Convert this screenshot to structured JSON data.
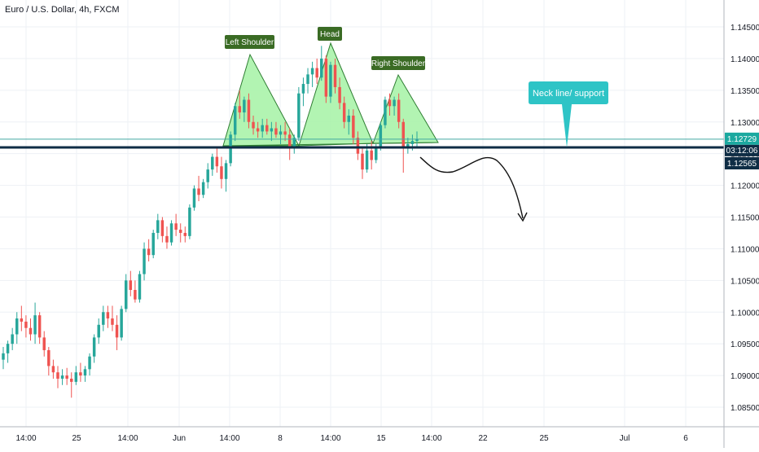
{
  "header": {
    "symbol_title": "Euro / U.S. Dollar, 4h, FXCM"
  },
  "colors": {
    "up": "#26a69a",
    "down": "#ef5350",
    "grid": "#eef1f5",
    "triangle_fill": "#a5f2a5",
    "triangle_stroke": "#2e7d32",
    "label_bg": "#3a6b24",
    "neckline": "#0f2d45",
    "callout": "#2ec4c6",
    "price_badge": "#1ca9a0",
    "neck_badge": "#0f2d45",
    "ask_line": "#43a9a3"
  },
  "chart_data": {
    "type": "candlestick",
    "title": "Euro / U.S. Dollar, 4h, FXCM",
    "ylim": [
      1.0825,
      1.1495
    ],
    "y_ticks": [
      "1.14500",
      "1.14000",
      "1.13500",
      "1.13000",
      "1.12500",
      "1.12000",
      "1.11500",
      "1.11000",
      "1.10500",
      "1.10000",
      "1.09500",
      "1.09000",
      "1.08500"
    ],
    "x_ticks": [
      "14:00",
      "25",
      "14:00",
      "Jun",
      "14:00",
      "8",
      "14:00",
      "15",
      "14:00",
      "22",
      "25",
      "Jul",
      "6"
    ],
    "grid": true,
    "current_price": "1.12729",
    "countdown": "03:12:06",
    "neckline_price": "1.12565",
    "candles": [
      [
        1.0925,
        1.0945,
        1.091,
        1.0935
      ],
      [
        1.0935,
        1.0955,
        1.092,
        1.095
      ],
      [
        1.095,
        1.0975,
        1.094,
        1.0965
      ],
      [
        1.0965,
        1.1,
        1.095,
        1.099
      ],
      [
        1.099,
        1.101,
        1.097,
        1.0985
      ],
      [
        1.0985,
        1.0995,
        1.096,
        1.0975
      ],
      [
        1.0975,
        1.099,
        1.0955,
        1.0965
      ],
      [
        1.0965,
        1.1015,
        1.095,
        1.0995
      ],
      [
        1.0995,
        1.1,
        1.095,
        1.096
      ],
      [
        1.096,
        1.097,
        1.093,
        1.094
      ],
      [
        1.094,
        1.0945,
        1.09,
        1.0915
      ],
      [
        1.0915,
        1.0925,
        1.0895,
        1.0905
      ],
      [
        1.0905,
        1.0915,
        1.088,
        1.0895
      ],
      [
        1.0895,
        1.091,
        1.0885,
        1.09
      ],
      [
        1.09,
        1.0912,
        1.0885,
        1.0895
      ],
      [
        1.0895,
        1.0905,
        1.0865,
        1.089
      ],
      [
        1.089,
        1.0915,
        1.0885,
        1.0905
      ],
      [
        1.0905,
        1.092,
        1.089,
        1.09
      ],
      [
        1.09,
        1.0915,
        1.089,
        1.091
      ],
      [
        1.091,
        1.0935,
        1.09,
        1.093
      ],
      [
        1.093,
        1.0965,
        1.092,
        1.096
      ],
      [
        1.096,
        1.099,
        1.095,
        1.098
      ],
      [
        1.098,
        1.101,
        1.097,
        1.1
      ],
      [
        1.1,
        1.101,
        1.0975,
        1.099
      ],
      [
        1.099,
        1.101,
        1.097,
        1.098
      ],
      [
        1.098,
        1.0995,
        1.094,
        1.096
      ],
      [
        1.096,
        1.101,
        1.0955,
        1.1005
      ],
      [
        1.1005,
        1.106,
        1.1,
        1.105
      ],
      [
        1.105,
        1.1065,
        1.1025,
        1.1035
      ],
      [
        1.1035,
        1.105,
        1.1015,
        1.102
      ],
      [
        1.102,
        1.1065,
        1.1015,
        1.106
      ],
      [
        1.106,
        1.111,
        1.105,
        1.11
      ],
      [
        1.11,
        1.1115,
        1.108,
        1.109
      ],
      [
        1.109,
        1.113,
        1.1085,
        1.1125
      ],
      [
        1.1125,
        1.1155,
        1.1115,
        1.1145
      ],
      [
        1.1145,
        1.115,
        1.111,
        1.112
      ],
      [
        1.112,
        1.1135,
        1.11,
        1.111
      ],
      [
        1.111,
        1.1145,
        1.1105,
        1.114
      ],
      [
        1.114,
        1.1155,
        1.112,
        1.113
      ],
      [
        1.113,
        1.114,
        1.111,
        1.1125
      ],
      [
        1.1125,
        1.1135,
        1.111,
        1.112
      ],
      [
        1.112,
        1.117,
        1.1115,
        1.1165
      ],
      [
        1.1165,
        1.12,
        1.116,
        1.1195
      ],
      [
        1.1195,
        1.1215,
        1.1175,
        1.1185
      ],
      [
        1.1185,
        1.121,
        1.118,
        1.1205
      ],
      [
        1.1205,
        1.1235,
        1.1195,
        1.1225
      ],
      [
        1.1225,
        1.125,
        1.1215,
        1.1245
      ],
      [
        1.1245,
        1.126,
        1.122,
        1.123
      ],
      [
        1.123,
        1.1245,
        1.1195,
        1.121
      ],
      [
        1.121,
        1.124,
        1.119,
        1.1235
      ],
      [
        1.1235,
        1.1285,
        1.123,
        1.128
      ],
      [
        1.128,
        1.133,
        1.127,
        1.1325
      ],
      [
        1.1325,
        1.135,
        1.1305,
        1.1315
      ],
      [
        1.1315,
        1.134,
        1.13,
        1.1335
      ],
      [
        1.1335,
        1.1345,
        1.129,
        1.13
      ],
      [
        1.13,
        1.131,
        1.128,
        1.129
      ],
      [
        1.129,
        1.13,
        1.1275,
        1.1285
      ],
      [
        1.1285,
        1.1305,
        1.1275,
        1.1295
      ],
      [
        1.1295,
        1.1305,
        1.128,
        1.1285
      ],
      [
        1.1285,
        1.13,
        1.127,
        1.129
      ],
      [
        1.129,
        1.13,
        1.1275,
        1.128
      ],
      [
        1.128,
        1.1295,
        1.1265,
        1.1285
      ],
      [
        1.1285,
        1.13,
        1.127,
        1.128
      ],
      [
        1.128,
        1.129,
        1.124,
        1.126
      ],
      [
        1.126,
        1.128,
        1.125,
        1.1275
      ],
      [
        1.1275,
        1.1355,
        1.127,
        1.1345
      ],
      [
        1.1345,
        1.137,
        1.1325,
        1.136
      ],
      [
        1.136,
        1.1385,
        1.1345,
        1.1375
      ],
      [
        1.1375,
        1.1395,
        1.1355,
        1.1385
      ],
      [
        1.1385,
        1.14,
        1.136,
        1.137
      ],
      [
        1.137,
        1.142,
        1.1365,
        1.14
      ],
      [
        1.14,
        1.1405,
        1.133,
        1.134
      ],
      [
        1.134,
        1.1395,
        1.133,
        1.139
      ],
      [
        1.139,
        1.14,
        1.1345,
        1.1355
      ],
      [
        1.1355,
        1.137,
        1.132,
        1.133
      ],
      [
        1.133,
        1.134,
        1.129,
        1.13
      ],
      [
        1.13,
        1.132,
        1.128,
        1.131
      ],
      [
        1.131,
        1.132,
        1.1265,
        1.1275
      ],
      [
        1.1275,
        1.1285,
        1.124,
        1.125
      ],
      [
        1.125,
        1.126,
        1.121,
        1.1225
      ],
      [
        1.1225,
        1.1265,
        1.122,
        1.1255
      ],
      [
        1.1255,
        1.127,
        1.1225,
        1.124
      ],
      [
        1.124,
        1.1265,
        1.1235,
        1.126
      ],
      [
        1.126,
        1.13,
        1.1255,
        1.1295
      ],
      [
        1.1295,
        1.134,
        1.129,
        1.1335
      ],
      [
        1.1335,
        1.1345,
        1.131,
        1.1325
      ],
      [
        1.1325,
        1.134,
        1.131,
        1.1335
      ],
      [
        1.1335,
        1.1345,
        1.129,
        1.13
      ],
      [
        1.13,
        1.1305,
        1.122,
        1.126
      ],
      [
        1.126,
        1.1275,
        1.125,
        1.1265
      ],
      [
        1.1265,
        1.128,
        1.1255,
        1.127
      ],
      [
        1.127,
        1.1285,
        1.126,
        1.1273
      ]
    ],
    "annotations": [
      {
        "text": "Left Shoulder"
      },
      {
        "text": "Head"
      },
      {
        "text": "Right Shoulder"
      },
      {
        "text": "Neck line/ support"
      }
    ]
  }
}
